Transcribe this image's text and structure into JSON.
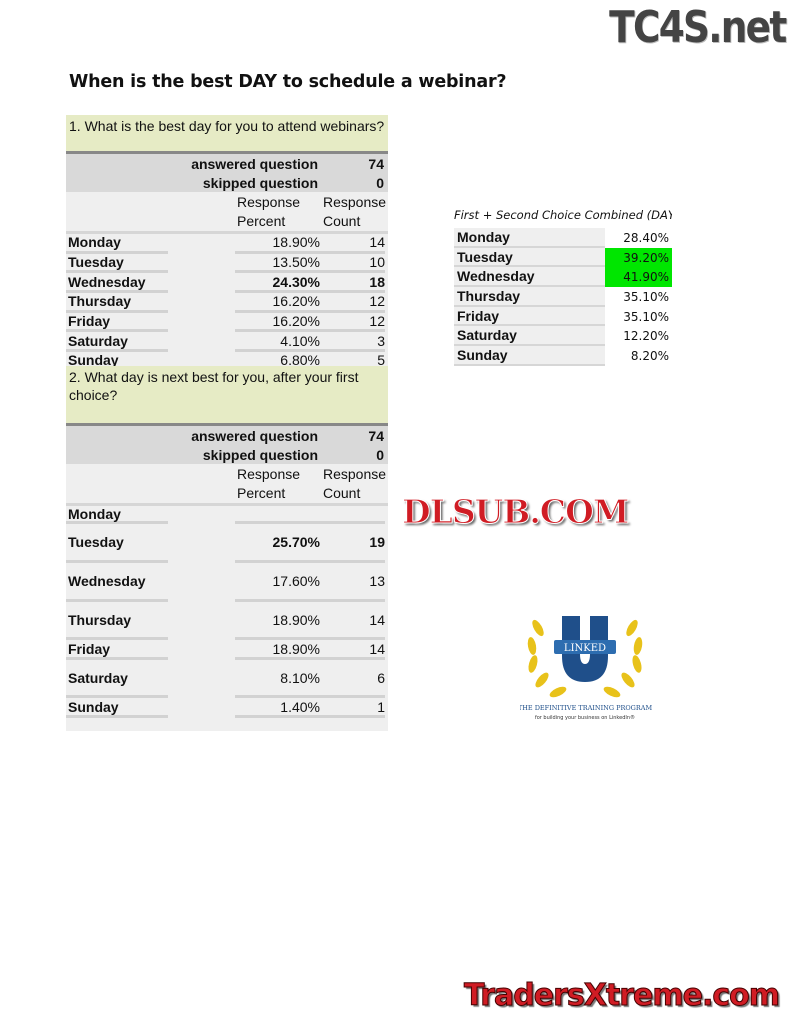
{
  "watermarks": {
    "top_right": "TC4S.net",
    "middle": "DLSUB.COM",
    "bottom": "TradersXtreme.com"
  },
  "title": "When is the best DAY to schedule a webinar?",
  "q1": {
    "question": "1. What is the best day for you to attend webinars?",
    "answered_label": "answered question",
    "answered": "74",
    "skipped_label": "skipped question",
    "skipped": "0",
    "col_percent": "Response Percent",
    "col_count": "Response Count",
    "rows": [
      {
        "day": "Monday",
        "percent": "18.90%",
        "count": "14"
      },
      {
        "day": "Tuesday",
        "percent": "13.50%",
        "count": "10"
      },
      {
        "day": "Wednesday",
        "percent": "24.30%",
        "count": "18"
      },
      {
        "day": "Thursday",
        "percent": "16.20%",
        "count": "12"
      },
      {
        "day": "Friday",
        "percent": "16.20%",
        "count": "12"
      },
      {
        "day": "Saturday",
        "percent": "4.10%",
        "count": "3"
      },
      {
        "day": "Sunday",
        "percent": "6.80%",
        "count": "5"
      }
    ]
  },
  "q2": {
    "question": "2. What day is next best for you, after your first choice?",
    "answered_label": "answered question",
    "answered": "74",
    "skipped_label": "skipped question",
    "skipped": "0",
    "col_percent": "Response Percent",
    "col_count": "Response Count",
    "rows": [
      {
        "day": "Monday",
        "percent": "",
        "count": ""
      },
      {
        "day": "Tuesday",
        "percent": "25.70%",
        "count": "19"
      },
      {
        "day": "Wednesday",
        "percent": "17.60%",
        "count": "13"
      },
      {
        "day": "Thursday",
        "percent": "18.90%",
        "count": "14"
      },
      {
        "day": "Friday",
        "percent": "18.90%",
        "count": "14"
      },
      {
        "day": "Saturday",
        "percent": "8.10%",
        "count": "6"
      },
      {
        "day": "Sunday",
        "percent": "1.40%",
        "count": "1"
      }
    ]
  },
  "combined": {
    "title": "First + Second Choice Combined (DAY)",
    "highlight_color": "#00e600",
    "rows": [
      {
        "day": "Monday",
        "value": "28.40%"
      },
      {
        "day": "Tuesday",
        "value": "39.20%",
        "highlight": true
      },
      {
        "day": "Wednesday",
        "value": "41.90%",
        "highlight": true
      },
      {
        "day": "Thursday",
        "value": "35.10%"
      },
      {
        "day": "Friday",
        "value": "35.10%"
      },
      {
        "day": "Saturday",
        "value": "12.20%"
      },
      {
        "day": "Sunday",
        "value": "8.20%"
      }
    ]
  },
  "logo": {
    "letter": "U",
    "banner": "LINKED",
    "tagline": "THE DEFINITIVE TRAINING PROGRAM",
    "subtagline": "for building your business on LinkedIn®"
  }
}
